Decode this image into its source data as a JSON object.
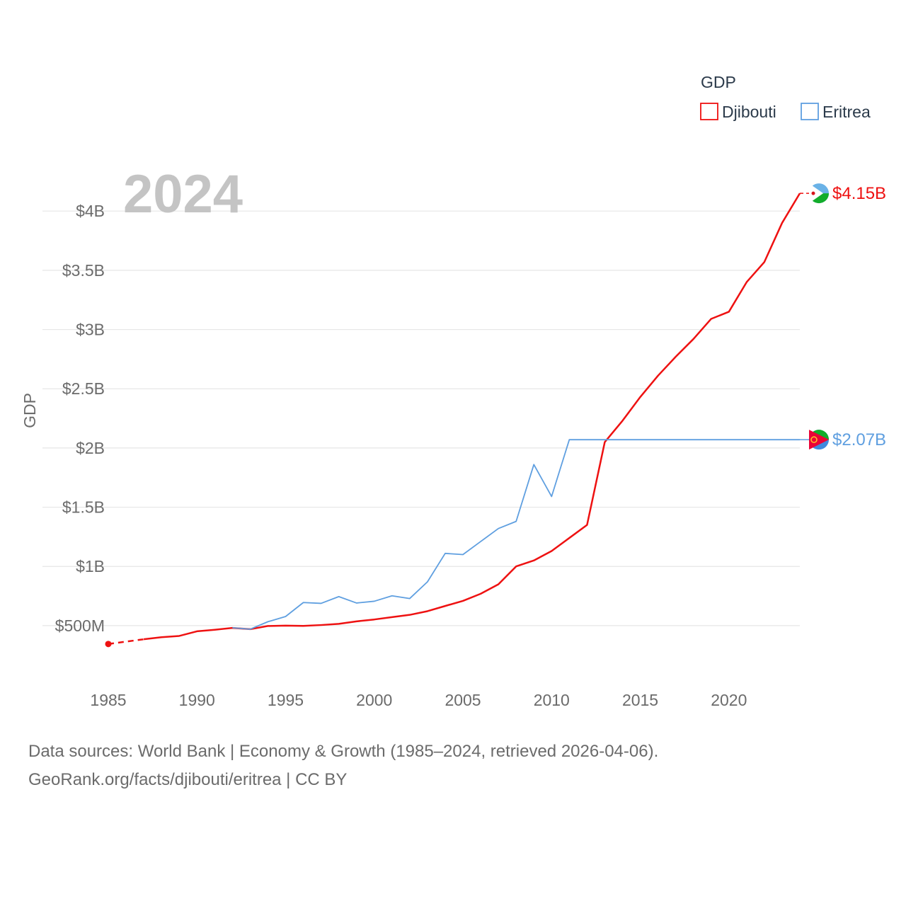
{
  "chart_data": {
    "type": "line",
    "title": "GDP",
    "year_label": "2024",
    "xlabel": "",
    "ylabel": "GDP",
    "xlim": [
      1985,
      2024
    ],
    "ylim": [
      350000000,
      4300000000
    ],
    "x_ticks": [
      1985,
      1990,
      1995,
      2000,
      2005,
      2010,
      2015,
      2020
    ],
    "y_ticks": [
      {
        "value": 500000000,
        "label": "$500M"
      },
      {
        "value": 1000000000,
        "label": "$1B"
      },
      {
        "value": 1500000000,
        "label": "$1.5B"
      },
      {
        "value": 2000000000,
        "label": "$2B"
      },
      {
        "value": 2500000000,
        "label": "$2.5B"
      },
      {
        "value": 3000000000,
        "label": "$3B"
      },
      {
        "value": 3500000000,
        "label": "$3.5B"
      },
      {
        "value": 4000000000,
        "label": "$4B"
      }
    ],
    "legend": {
      "title": "GDP",
      "position": "top-right"
    },
    "series": [
      {
        "name": "Djibouti",
        "color": "#ee1111",
        "end_label": "$4.15B",
        "dashed_years": [
          1985,
          1987
        ],
        "points": [
          [
            1985,
            345000000
          ],
          [
            1987,
            385000000
          ],
          [
            1988,
            402000000
          ],
          [
            1989,
            413000000
          ],
          [
            1990,
            452000000
          ],
          [
            1991,
            465000000
          ],
          [
            1992,
            481000000
          ],
          [
            1993,
            470000000
          ],
          [
            1994,
            497000000
          ],
          [
            1995,
            500000000
          ],
          [
            1996,
            498000000
          ],
          [
            1997,
            505000000
          ],
          [
            1998,
            515000000
          ],
          [
            1999,
            536000000
          ],
          [
            2000,
            552000000
          ],
          [
            2001,
            572000000
          ],
          [
            2002,
            591000000
          ],
          [
            2003,
            622000000
          ],
          [
            2004,
            666000000
          ],
          [
            2005,
            709000000
          ],
          [
            2006,
            769000000
          ],
          [
            2007,
            849000000
          ],
          [
            2008,
            1000000000
          ],
          [
            2009,
            1050000000
          ],
          [
            2010,
            1130000000
          ],
          [
            2011,
            1240000000
          ],
          [
            2012,
            1350000000
          ],
          [
            2013,
            2050000000
          ],
          [
            2014,
            2230000000
          ],
          [
            2015,
            2430000000
          ],
          [
            2016,
            2610000000
          ],
          [
            2017,
            2770000000
          ],
          [
            2018,
            2920000000
          ],
          [
            2019,
            3090000000
          ],
          [
            2020,
            3150000000
          ],
          [
            2021,
            3400000000
          ],
          [
            2022,
            3570000000
          ],
          [
            2023,
            3900000000
          ],
          [
            2024,
            4150000000
          ]
        ]
      },
      {
        "name": "Eritrea",
        "color": "#5f9fe0",
        "end_label": "$2.07B",
        "points": [
          [
            1992,
            482000000
          ],
          [
            1993,
            470000000
          ],
          [
            1994,
            533000000
          ],
          [
            1995,
            577000000
          ],
          [
            1996,
            695000000
          ],
          [
            1997,
            688000000
          ],
          [
            1998,
            745000000
          ],
          [
            1999,
            691000000
          ],
          [
            2000,
            706000000
          ],
          [
            2001,
            752000000
          ],
          [
            2002,
            729000000
          ],
          [
            2003,
            870000000
          ],
          [
            2004,
            1110000000
          ],
          [
            2005,
            1100000000
          ],
          [
            2006,
            1210000000
          ],
          [
            2007,
            1320000000
          ],
          [
            2008,
            1380000000
          ],
          [
            2009,
            1860000000
          ],
          [
            2010,
            1590000000
          ],
          [
            2011,
            2070000000
          ],
          [
            2024,
            2070000000
          ]
        ]
      }
    ]
  },
  "footer": {
    "line1": "Data sources: World Bank | Economy & Growth (1985–2024, retrieved 2026-04-06).",
    "line2": "GeoRank.org/facts/djibouti/eritrea | CC BY"
  }
}
